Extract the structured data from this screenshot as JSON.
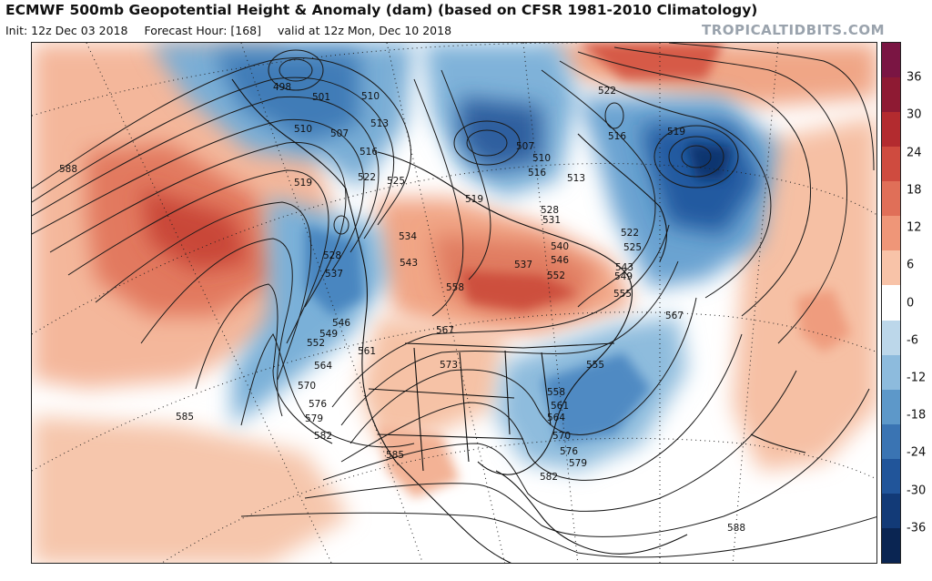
{
  "header": {
    "title": "ECMWF 500mb Geopotential Height & Anomaly (dam) (based on CFSR 1981-2010 Climatology)",
    "init": "Init: 12z Dec 03 2018",
    "forecast_hour": "Forecast Hour: [168]",
    "valid": "valid at 12z Mon, Dec 10 2018",
    "brand": "TROPICALTIDBITS.COM"
  },
  "colorbar": {
    "ticks": [
      "36",
      "30",
      "24",
      "18",
      "12",
      "6",
      "0",
      "-6",
      "-12",
      "-18",
      "-24",
      "-30",
      "-36"
    ],
    "colors": [
      "#7a1543",
      "#8e1a33",
      "#b32b2f",
      "#cf4b3f",
      "#e06f58",
      "#ef9678",
      "#f8c3a8",
      "#ffffff",
      "#bcd7ea",
      "#8dbbdd",
      "#5d98c9",
      "#3a74b3",
      "#21559a",
      "#123a77",
      "#0a2552"
    ]
  },
  "contour_labels": [
    "498",
    "501",
    "507",
    "510",
    "513",
    "516",
    "519",
    "522",
    "525",
    "528",
    "531",
    "534",
    "537",
    "540",
    "543",
    "546",
    "549",
    "552",
    "555",
    "558",
    "561",
    "564",
    "567",
    "570",
    "573",
    "576",
    "579",
    "582",
    "585",
    "588"
  ]
}
